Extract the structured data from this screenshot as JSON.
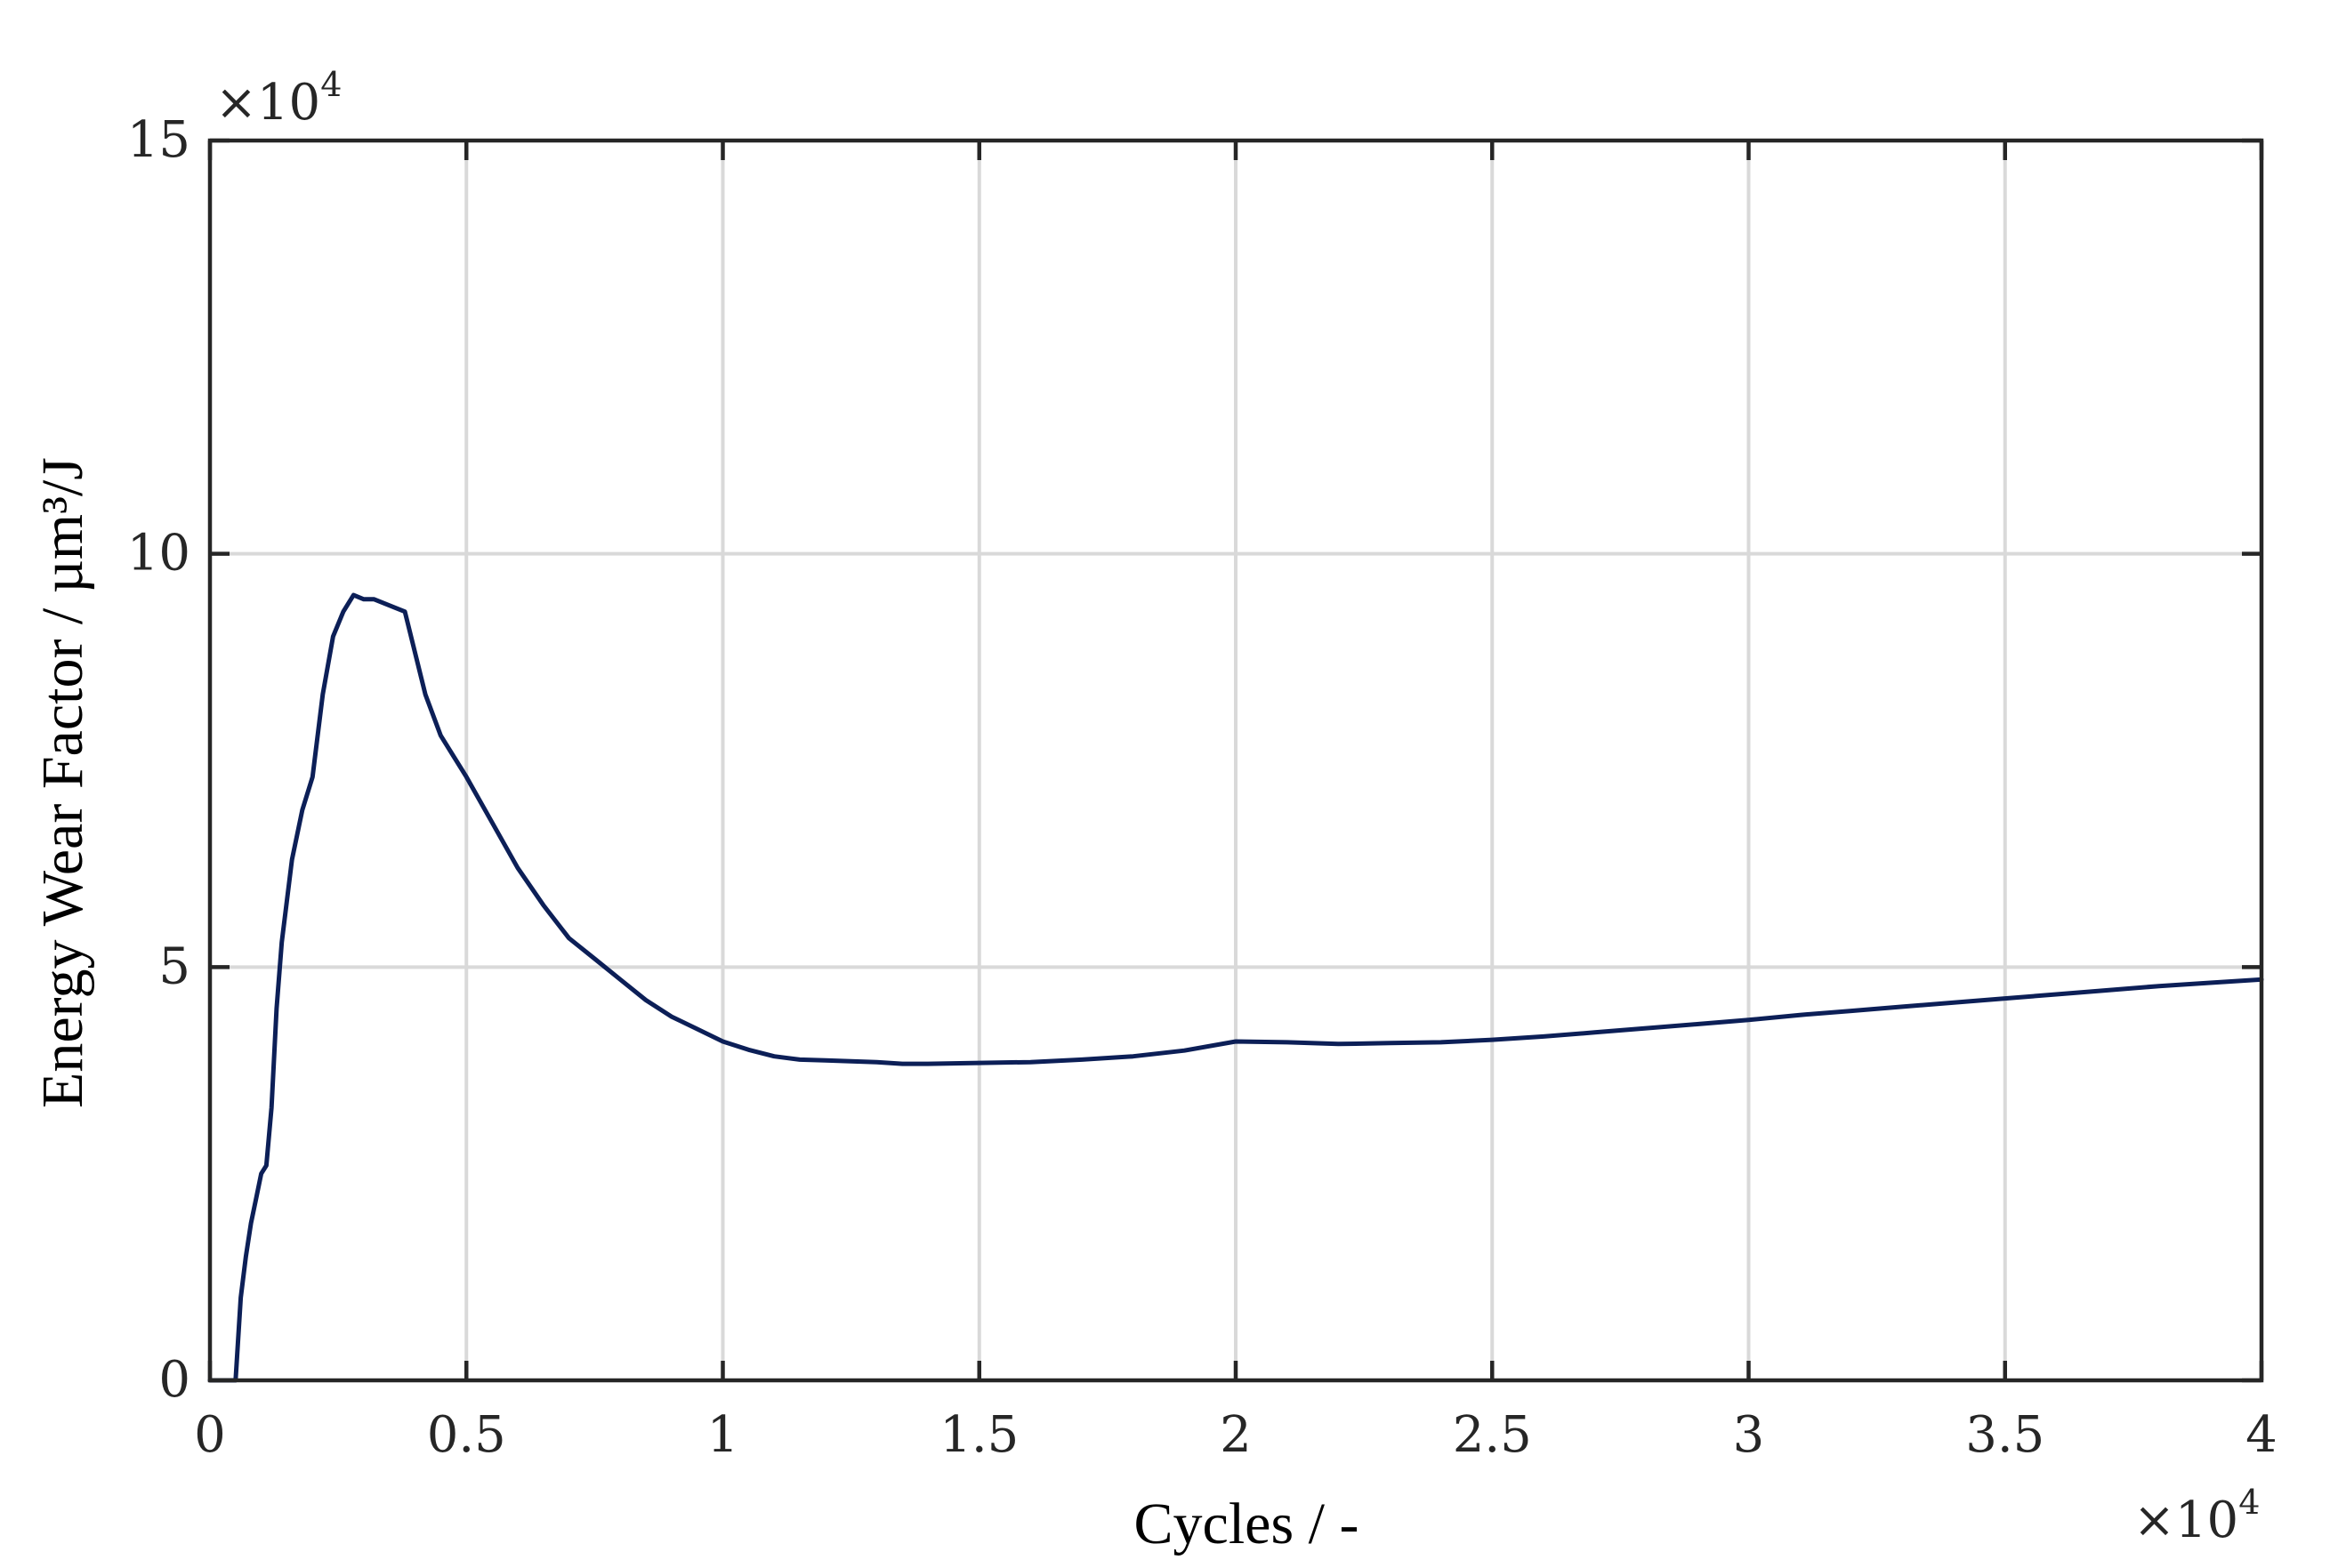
{
  "chart_data": {
    "type": "line",
    "xlabel": "Cycles / -",
    "ylabel": "Energy Wear Factor / µm³/J",
    "xlim": [
      0,
      40000
    ],
    "ylim": [
      0,
      150000
    ],
    "x_ticks": [
      0,
      5000,
      10000,
      15000,
      20000,
      25000,
      30000,
      35000,
      40000
    ],
    "x_tick_labels": [
      "0",
      "0.5",
      "1",
      "1.5",
      "2",
      "2.5",
      "3",
      "3.5",
      "4"
    ],
    "y_ticks": [
      0,
      50000,
      100000,
      150000
    ],
    "y_tick_labels": [
      "0",
      "5",
      "10",
      "15"
    ],
    "x_exponent_label": "×10",
    "x_exponent_power": "4",
    "y_exponent_label": "×10",
    "y_exponent_power": "4",
    "grid": true,
    "line_color": "#0c1f57",
    "series": [
      {
        "x": [
          0,
          500,
          600,
          700,
          800,
          900,
          1000,
          1100,
          1200,
          1300,
          1400,
          1600,
          1800,
          2000,
          2200,
          2400,
          2600,
          2800,
          3000,
          3200,
          3400,
          3600,
          3800,
          4000,
          4200,
          4500,
          5000,
          5500,
          6000,
          6500,
          7000,
          7500,
          8000,
          8500,
          9000,
          9500,
          10000,
          10500,
          11000,
          11500,
          12000,
          12500,
          13000,
          13500,
          14000,
          15000,
          16000,
          17000,
          18000,
          19000,
          20000,
          21000,
          22000,
          23000,
          24000,
          25000,
          26000,
          27000,
          28000,
          29000,
          30000,
          31000,
          32000,
          33000,
          34000,
          35000,
          36000,
          37000,
          38000,
          39000,
          40000
        ],
        "y": [
          0,
          0,
          10000,
          15000,
          19000,
          22000,
          25000,
          26000,
          33000,
          45000,
          53000,
          63000,
          69000,
          73000,
          83000,
          90000,
          93000,
          95000,
          94500,
          94500,
          94000,
          93500,
          93000,
          88000,
          83000,
          78000,
          73000,
          67500,
          62000,
          57500,
          53500,
          51000,
          48500,
          46000,
          44000,
          42500,
          41000,
          40000,
          39200,
          38800,
          38700,
          38600,
          38500,
          38300,
          38300,
          38400,
          38500,
          38800,
          39200,
          39900,
          41000,
          40900,
          40700,
          40800,
          40900,
          41200,
          41600,
          42100,
          42600,
          43100,
          43600,
          44200,
          44700,
          45200,
          45700,
          46200,
          46700,
          47200,
          47700,
          48100,
          48500
        ]
      }
    ]
  }
}
